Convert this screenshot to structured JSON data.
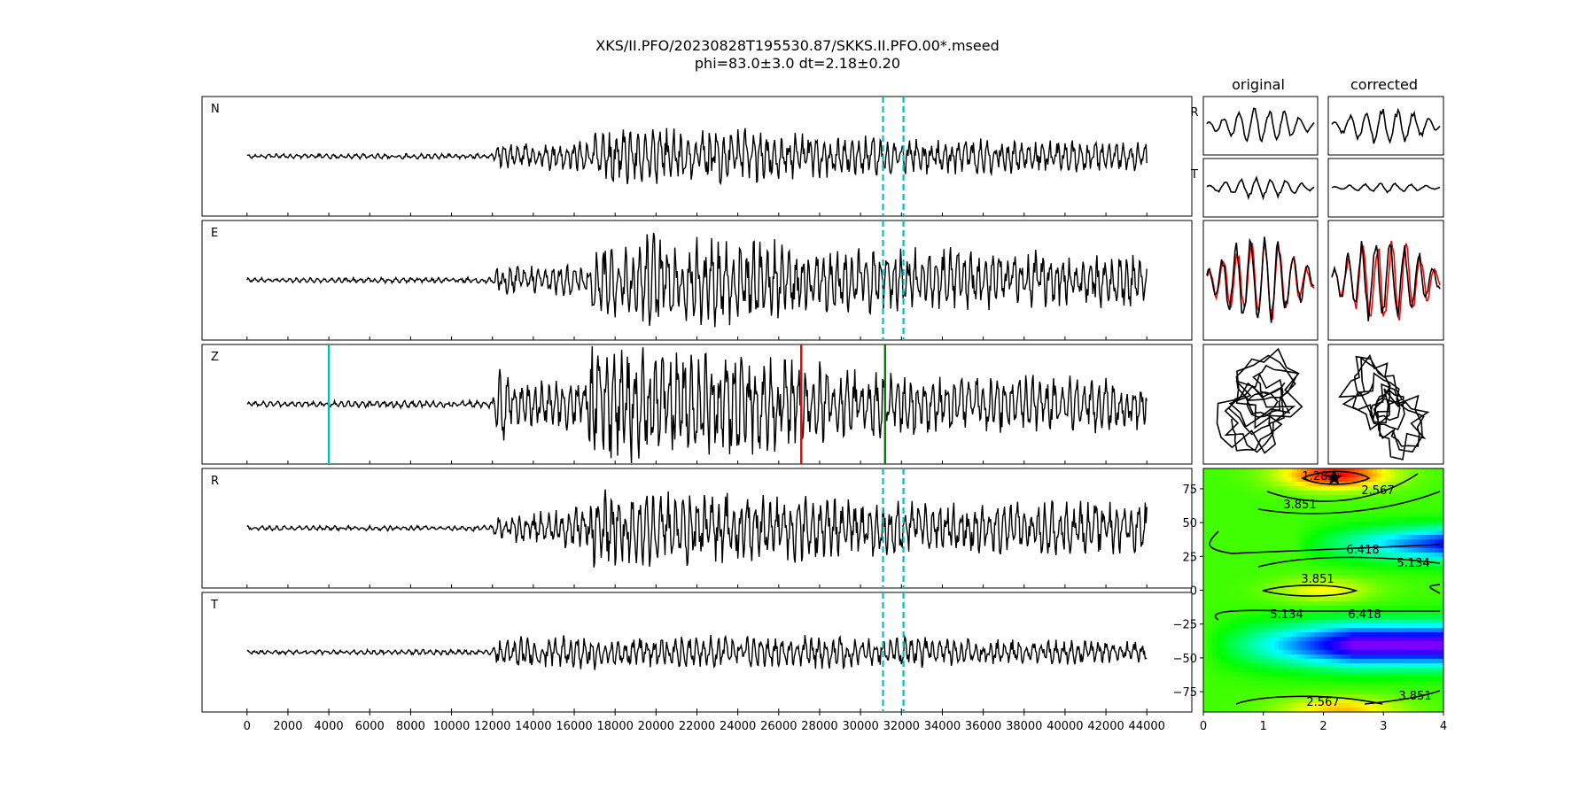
{
  "figure": {
    "title_line1": "XKS/II.PFO/20230828T195530.87/SKKS.II.PFO.00*.mseed",
    "title_line2": "phi=83.0±3.0 dt=2.18±0.20",
    "col_original": "original",
    "col_corrected": "corrected"
  },
  "chart_data": [
    {
      "type": "line",
      "panel": "seismogram traces",
      "traces": [
        "N",
        "E",
        "Z",
        "R",
        "T"
      ],
      "x_range": [
        0,
        44000
      ],
      "xlim": [
        -2200,
        46200
      ],
      "x_ticks": [
        "0",
        "2000",
        "4000",
        "6000",
        "8000",
        "10000",
        "12000",
        "14000",
        "16000",
        "18000",
        "20000",
        "22000",
        "24000",
        "26000",
        "28000",
        "30000",
        "32000",
        "34000",
        "36000",
        "38000",
        "40000",
        "42000",
        "44000"
      ],
      "window_markers": {
        "style": "dashed",
        "color": "#00bfbf",
        "x": [
          31100,
          32100
        ],
        "traces": [
          "N",
          "E",
          "R",
          "T"
        ]
      },
      "z_markers": [
        {
          "x": 4000,
          "color": "#00bfbf"
        },
        {
          "x": 27100,
          "color": "#ff0000"
        },
        {
          "x": 31200,
          "color": "#008000"
        }
      ],
      "envelope": {
        "N": [
          [
            0,
            0.04
          ],
          [
            12000,
            0.05
          ],
          [
            12200,
            0.2
          ],
          [
            16600,
            0.3
          ],
          [
            16800,
            0.45
          ],
          [
            23000,
            0.5
          ],
          [
            30000,
            0.35
          ],
          [
            44000,
            0.25
          ]
        ],
        "E": [
          [
            0,
            0.04
          ],
          [
            12000,
            0.05
          ],
          [
            12200,
            0.25
          ],
          [
            16600,
            0.3
          ],
          [
            16800,
            0.55
          ],
          [
            20000,
            0.85
          ],
          [
            30000,
            0.6
          ],
          [
            44000,
            0.45
          ]
        ],
        "Z": [
          [
            0,
            0.05
          ],
          [
            12000,
            0.07
          ],
          [
            12200,
            0.85
          ],
          [
            13000,
            0.4
          ],
          [
            16600,
            0.45
          ],
          [
            16800,
            1.0
          ],
          [
            24000,
            0.95
          ],
          [
            30000,
            0.6
          ],
          [
            44000,
            0.45
          ]
        ],
        "R": [
          [
            0,
            0.04
          ],
          [
            12000,
            0.05
          ],
          [
            12200,
            0.2
          ],
          [
            16600,
            0.4
          ],
          [
            16800,
            0.65
          ],
          [
            22000,
            0.7
          ],
          [
            30000,
            0.5
          ],
          [
            44000,
            0.45
          ]
        ],
        "T": [
          [
            0,
            0.04
          ],
          [
            12000,
            0.05
          ],
          [
            12200,
            0.25
          ],
          [
            16600,
            0.3
          ],
          [
            16800,
            0.3
          ],
          [
            30000,
            0.28
          ],
          [
            44000,
            0.18
          ]
        ]
      }
    },
    {
      "type": "line",
      "panel": "waveform comparison",
      "row_labels": [
        "R",
        "T"
      ],
      "columns": [
        "original",
        "corrected"
      ]
    },
    {
      "type": "heatmap",
      "panel": "error surface",
      "x_range": [
        0,
        4
      ],
      "y_range": [
        -90,
        90
      ],
      "x_ticks": [
        "0",
        "1",
        "2",
        "3",
        "4"
      ],
      "y_ticks": [
        "75",
        "50",
        "25",
        "0",
        "−25",
        "−50",
        "−75"
      ],
      "contour_labels": [
        "1.283",
        "2.567",
        "3.851",
        "6.418",
        "5.134",
        "3.851",
        "5.134",
        "6.418",
        "2.567",
        "3.851"
      ],
      "best_fit": {
        "dt": 2.18,
        "phi": 83.0
      }
    }
  ]
}
